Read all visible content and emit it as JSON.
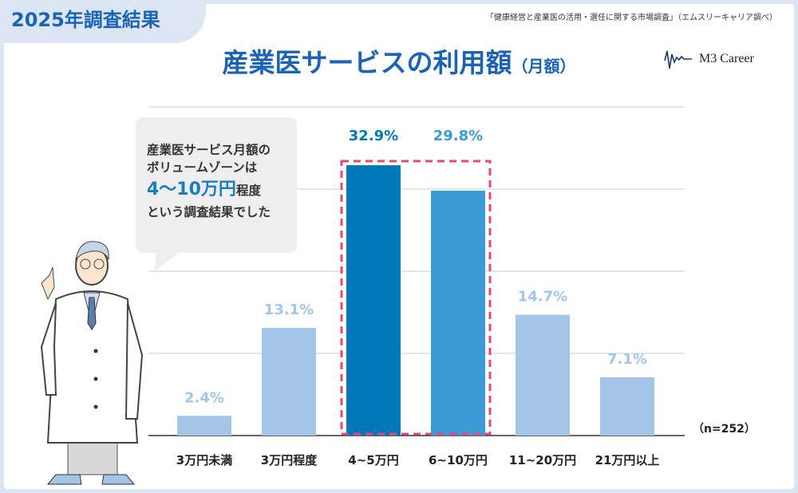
{
  "header": {
    "tag": "2025年調査結果",
    "source": "「健康経営と産業医の活用・選任に関する市場調査」（エムスリーキャリア調べ）",
    "title": "産業医サービスの利用額",
    "title_sub": "（月額）",
    "logo": "M3 Career"
  },
  "bubble": {
    "line1": "産業医サービス月額の",
    "line2": "ボリュームゾーンは",
    "highlight": "4〜10万円",
    "line3_rest": "程度",
    "line4": "という調査結果でした"
  },
  "sample": "（n=252）",
  "chart_data": {
    "type": "bar",
    "categories": [
      "3万円未満",
      "3万円程度",
      "4~5万円",
      "6~10万円",
      "11~20万円",
      "21万円以上"
    ],
    "values": [
      2.4,
      13.1,
      32.9,
      29.8,
      14.7,
      7.1
    ],
    "labels": [
      "2.4%",
      "13.1%",
      "32.9%",
      "29.8%",
      "14.7%",
      "7.1%"
    ],
    "ylim": [
      0,
      40
    ],
    "grid": true,
    "highlighted": [
      "4~5万円",
      "6~10万円"
    ],
    "colors": [
      "#a3c6e8",
      "#a3c6e8",
      "#0077b6",
      "#3a9bd5",
      "#a3c6e8",
      "#a3c6e8"
    ],
    "label_colors": [
      "#a3c6e8",
      "#a3c6e8",
      "#0077b6",
      "#3a9bd5",
      "#a3c6e8",
      "#a3c6e8"
    ],
    "highlight_border_color": "#e8457e"
  }
}
